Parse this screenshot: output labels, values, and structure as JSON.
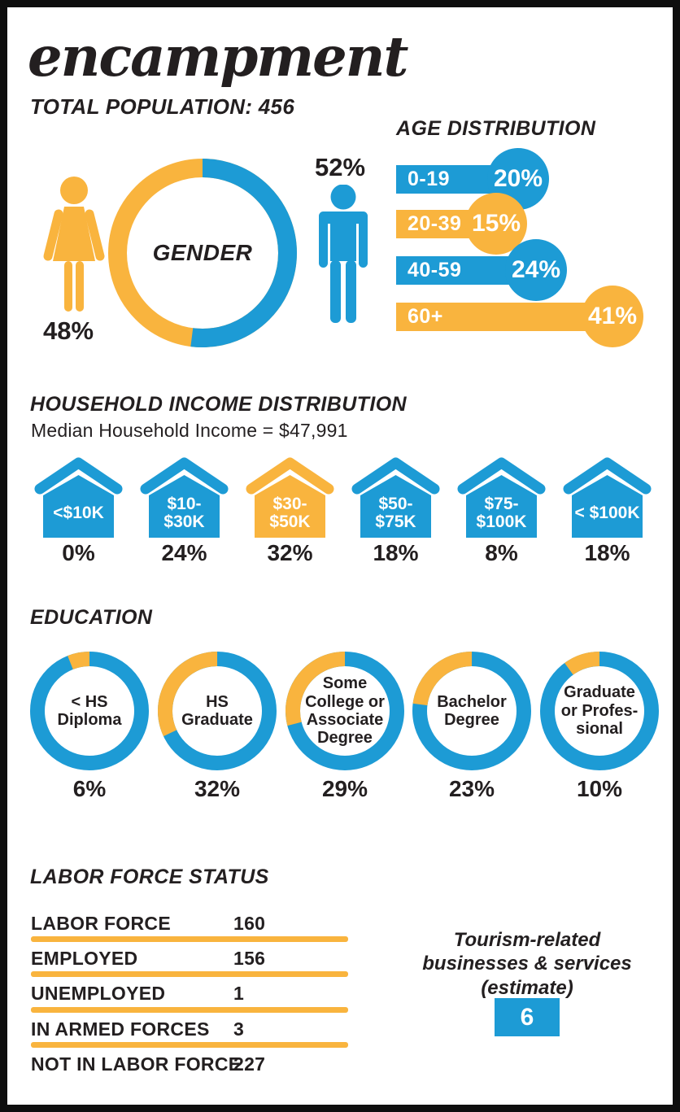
{
  "title": "encampment",
  "total_population_label": "TOTAL POPULATION: 456",
  "colors": {
    "blue": "#1d9bd5",
    "yellow": "#f9b43e",
    "text": "#231f20"
  },
  "gender": {
    "heading": "GENDER",
    "female_pct": 48,
    "female_label": "48%",
    "male_pct": 52,
    "male_label": "52%"
  },
  "age": {
    "heading": "AGE DISTRIBUTION",
    "items": [
      {
        "range": "0-19",
        "pct": 20,
        "pct_label": "20%",
        "color": "blue"
      },
      {
        "range": "20-39",
        "pct": 15,
        "pct_label": "15%",
        "color": "yellow"
      },
      {
        "range": "40-59",
        "pct": 24,
        "pct_label": "24%",
        "color": "blue"
      },
      {
        "range": "60+",
        "pct": 41,
        "pct_label": "41%",
        "color": "yellow"
      }
    ]
  },
  "income": {
    "heading": "HOUSEHOLD INCOME DISTRIBUTION",
    "subheading": "Median Household Income = $47,991",
    "items": [
      {
        "range": "<$10K",
        "pct": 0,
        "pct_label": "0%",
        "color": "blue"
      },
      {
        "range": "$10-\n$30K",
        "pct": 24,
        "pct_label": "24%",
        "color": "blue"
      },
      {
        "range": "$30-\n$50K",
        "pct": 32,
        "pct_label": "32%",
        "color": "yellow"
      },
      {
        "range": "$50-\n$75K",
        "pct": 18,
        "pct_label": "18%",
        "color": "blue"
      },
      {
        "range": "$75-\n$100K",
        "pct": 8,
        "pct_label": "8%",
        "color": "blue"
      },
      {
        "range": "< $100K",
        "pct": 18,
        "pct_label": "18%",
        "color": "blue"
      }
    ]
  },
  "education": {
    "heading": "EDUCATION",
    "items": [
      {
        "label": "< HS\nDiploma",
        "pct": 6,
        "pct_label": "6%"
      },
      {
        "label": "HS\nGraduate",
        "pct": 32,
        "pct_label": "32%"
      },
      {
        "label": "Some\nCollege or\nAssociate\nDegree",
        "pct": 29,
        "pct_label": "29%"
      },
      {
        "label": "Bachelor\nDegree",
        "pct": 23,
        "pct_label": "23%"
      },
      {
        "label": "Graduate\nor Profes-\nsional",
        "pct": 10,
        "pct_label": "10%"
      }
    ]
  },
  "labor": {
    "heading": "LABOR FORCE STATUS",
    "rows": [
      {
        "label": "LABOR FORCE",
        "value": "160"
      },
      {
        "label": "EMPLOYED",
        "value": "156"
      },
      {
        "label": "UNEMPLOYED",
        "value": "1"
      },
      {
        "label": "IN ARMED FORCES",
        "value": "3"
      },
      {
        "label": "NOT IN LABOR FORCE",
        "value": "227"
      }
    ]
  },
  "tourism": {
    "label": "Tourism-related\nbusinesses & services\n(estimate)",
    "value": "6"
  },
  "chart_data": [
    {
      "type": "pie",
      "style": "donut",
      "title": "GENDER",
      "labels": [
        "Female",
        "Male"
      ],
      "values": [
        48,
        52
      ],
      "unit": "%",
      "colors": [
        "#f9b43e",
        "#1d9bd5"
      ]
    },
    {
      "type": "bar",
      "orientation": "horizontal",
      "title": "AGE DISTRIBUTION",
      "categories": [
        "0-19",
        "20-39",
        "40-59",
        "60+"
      ],
      "values": [
        20,
        15,
        24,
        41
      ],
      "unit": "%",
      "bar_colors": [
        "#1d9bd5",
        "#f9b43e",
        "#1d9bd5",
        "#f9b43e"
      ]
    },
    {
      "type": "bar",
      "title": "HOUSEHOLD INCOME DISTRIBUTION",
      "subtitle": "Median Household Income = $47,991",
      "categories": [
        "<$10K",
        "$10-$30K",
        "$30-$50K",
        "$50-$75K",
        "$75-$100K",
        "< $100K"
      ],
      "values": [
        0,
        24,
        32,
        18,
        8,
        18
      ],
      "unit": "%",
      "highlight_category": "$30-$50K"
    },
    {
      "type": "pie",
      "style": "donut-per-category",
      "title": "EDUCATION",
      "categories": [
        "< HS Diploma",
        "HS Graduate",
        "Some College or Associate Degree",
        "Bachelor Degree",
        "Graduate or Professional"
      ],
      "values": [
        6,
        32,
        29,
        23,
        10
      ],
      "unit": "%"
    },
    {
      "type": "table",
      "title": "LABOR FORCE STATUS",
      "rows": [
        [
          "LABOR FORCE",
          160
        ],
        [
          "EMPLOYED",
          156
        ],
        [
          "UNEMPLOYED",
          1
        ],
        [
          "IN ARMED FORCES",
          3
        ],
        [
          "NOT IN LABOR FORCE",
          227
        ]
      ]
    },
    {
      "type": "table",
      "title": "Tourism-related businesses & services (estimate)",
      "rows": [
        [
          "Tourism-related businesses & services (estimate)",
          6
        ]
      ]
    }
  ]
}
